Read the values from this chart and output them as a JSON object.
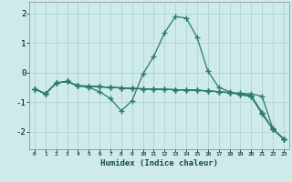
{
  "xlabel": "Humidex (Indice chaleur)",
  "x_values": [
    0,
    1,
    2,
    3,
    4,
    5,
    6,
    7,
    8,
    9,
    10,
    11,
    12,
    13,
    14,
    15,
    16,
    17,
    18,
    19,
    20,
    21,
    22,
    23
  ],
  "line1": [
    -0.55,
    -0.72,
    -0.35,
    -0.3,
    -0.45,
    -0.5,
    -0.65,
    -0.88,
    -1.3,
    -0.95,
    -0.05,
    0.55,
    1.35,
    1.9,
    1.85,
    1.2,
    0.05,
    -0.5,
    -0.65,
    -0.75,
    -0.8,
    -1.4,
    -1.92,
    -2.25
  ],
  "line2": [
    -0.55,
    -0.72,
    -0.35,
    -0.3,
    -0.45,
    -0.46,
    -0.48,
    -0.5,
    -0.52,
    -0.54,
    -0.55,
    -0.56,
    -0.57,
    -0.58,
    -0.59,
    -0.6,
    -0.62,
    -0.65,
    -0.68,
    -0.7,
    -0.72,
    -0.8,
    -1.9,
    -2.25
  ],
  "line3": [
    -0.55,
    -0.72,
    -0.35,
    -0.3,
    -0.45,
    -0.46,
    -0.48,
    -0.5,
    -0.52,
    -0.54,
    -0.55,
    -0.56,
    -0.57,
    -0.58,
    -0.59,
    -0.6,
    -0.62,
    -0.65,
    -0.68,
    -0.72,
    -0.78,
    -1.35,
    -1.92,
    -2.25
  ],
  "line4": [
    -0.55,
    -0.72,
    -0.35,
    -0.3,
    -0.45,
    -0.46,
    -0.48,
    -0.5,
    -0.52,
    -0.54,
    -0.55,
    -0.56,
    -0.57,
    -0.58,
    -0.59,
    -0.6,
    -0.62,
    -0.65,
    -0.68,
    -0.74,
    -0.82,
    -1.38,
    -1.92,
    -2.25
  ],
  "line_color": "#2a7a6a",
  "bg_color": "#ceeaea",
  "grid_color": "#aed4d4",
  "ylim": [
    -2.6,
    2.4
  ],
  "yticks": [
    -2,
    -1,
    0,
    1,
    2
  ],
  "marker": "+",
  "markersize": 4,
  "linewidth": 0.9
}
